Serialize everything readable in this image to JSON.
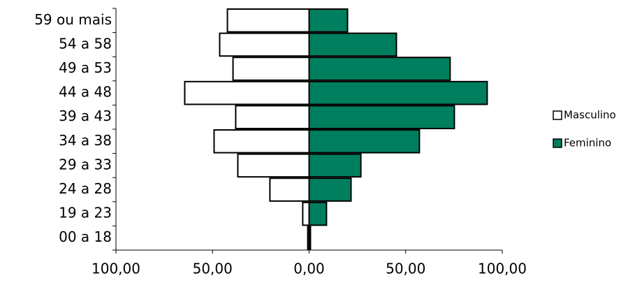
{
  "chart_data": {
    "type": "pyramid",
    "categories": [
      "59 ou mais",
      "54 a 58",
      "49 a 53",
      "44 a 48",
      "39 a 43",
      "34 a 38",
      "29 a 33",
      "24 a 28",
      "19 a 23",
      "00 a 18"
    ],
    "series": [
      {
        "name": "Masculino",
        "color": "#ffffff",
        "values": [
          -42.3,
          -46.3,
          -39.4,
          -64.4,
          -38,
          -49.2,
          -36.9,
          -20.3,
          -3.3,
          -0.7
        ]
      },
      {
        "name": "Feminino",
        "color": "#007f5f",
        "values": [
          19.9,
          45.2,
          73,
          92.2,
          75.2,
          57.1,
          26.8,
          21.7,
          9,
          0.7
        ]
      }
    ],
    "xlim": [
      -100,
      100
    ],
    "xticks": [
      {
        "value": -100,
        "label": "100,00"
      },
      {
        "value": -50,
        "label": "50,00"
      },
      {
        "value": 0,
        "label": "0,00"
      },
      {
        "value": 50,
        "label": "50,00"
      },
      {
        "value": 100,
        "label": "100,00"
      }
    ],
    "legend": "right"
  }
}
